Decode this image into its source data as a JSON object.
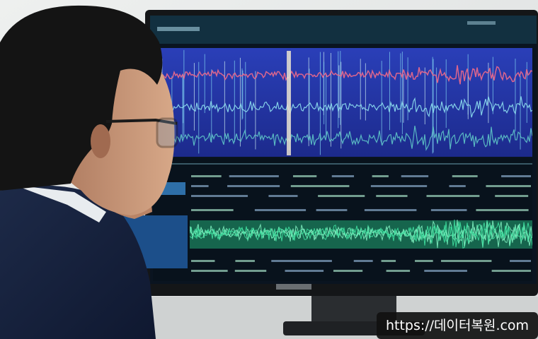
{
  "watermark": "https://데이터복원.com"
}
